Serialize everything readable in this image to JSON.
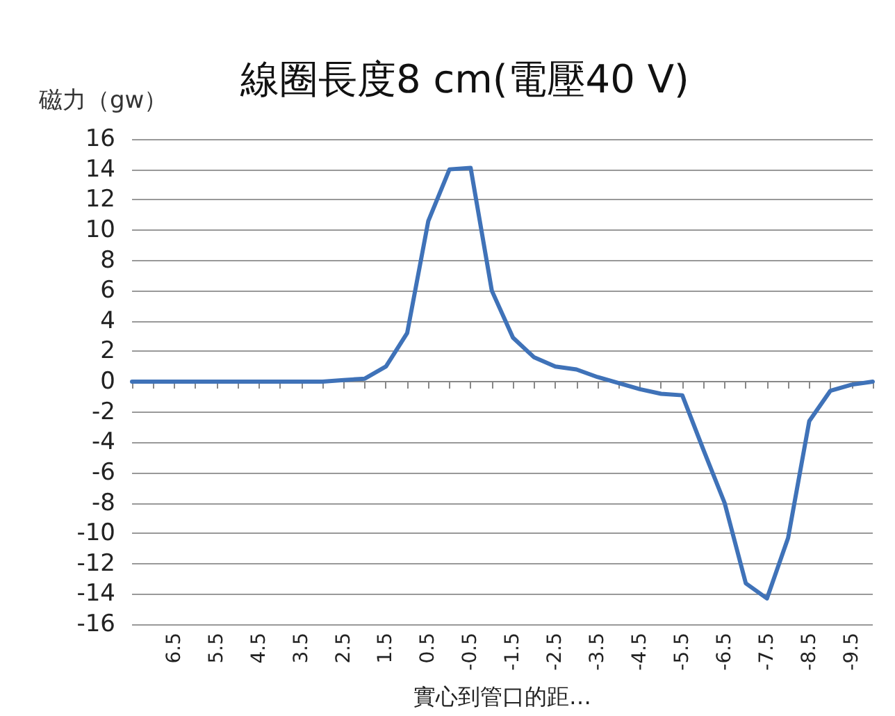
{
  "chart_data": {
    "type": "line",
    "title": "線圈長度8 cm(電壓40 V)",
    "ylabel": "磁力（gw）",
    "xlabel": "實心到管口的距…",
    "categories": [
      null,
      null,
      "6.5",
      null,
      "5.5",
      null,
      "4.5",
      null,
      "3.5",
      null,
      "2.5",
      null,
      "1.5",
      null,
      "0.5",
      null,
      "-0.5",
      null,
      "-1.5",
      null,
      "-2.5",
      null,
      "-3.5",
      null,
      "-4.5",
      null,
      "-5.5",
      null,
      "-6.5",
      null,
      "-7.5",
      null,
      "-8.5",
      null,
      "-9.5",
      null
    ],
    "series": [
      {
        "color": "#3f72b8",
        "values": [
          0,
          0,
          0,
          0,
          0,
          0,
          0,
          0,
          0,
          0,
          0.1,
          0.2,
          1,
          3.2,
          10.6,
          14,
          14.1,
          6,
          2.9,
          1.6,
          1,
          0.8,
          0.3,
          -0.1,
          -0.5,
          -0.8,
          -0.9,
          -4.5,
          -8,
          -13.3,
          -14.3,
          -10.3,
          -2.6,
          -0.6,
          -0.2,
          0
        ]
      }
    ],
    "ylim": [
      -16,
      16
    ],
    "yticks": [
      -16,
      -14,
      -12,
      -10,
      -8,
      -6,
      -4,
      -2,
      0,
      2,
      4,
      6,
      8,
      10,
      12,
      14,
      16
    ],
    "grid": "y",
    "marker": "none",
    "line_style": "solid"
  }
}
